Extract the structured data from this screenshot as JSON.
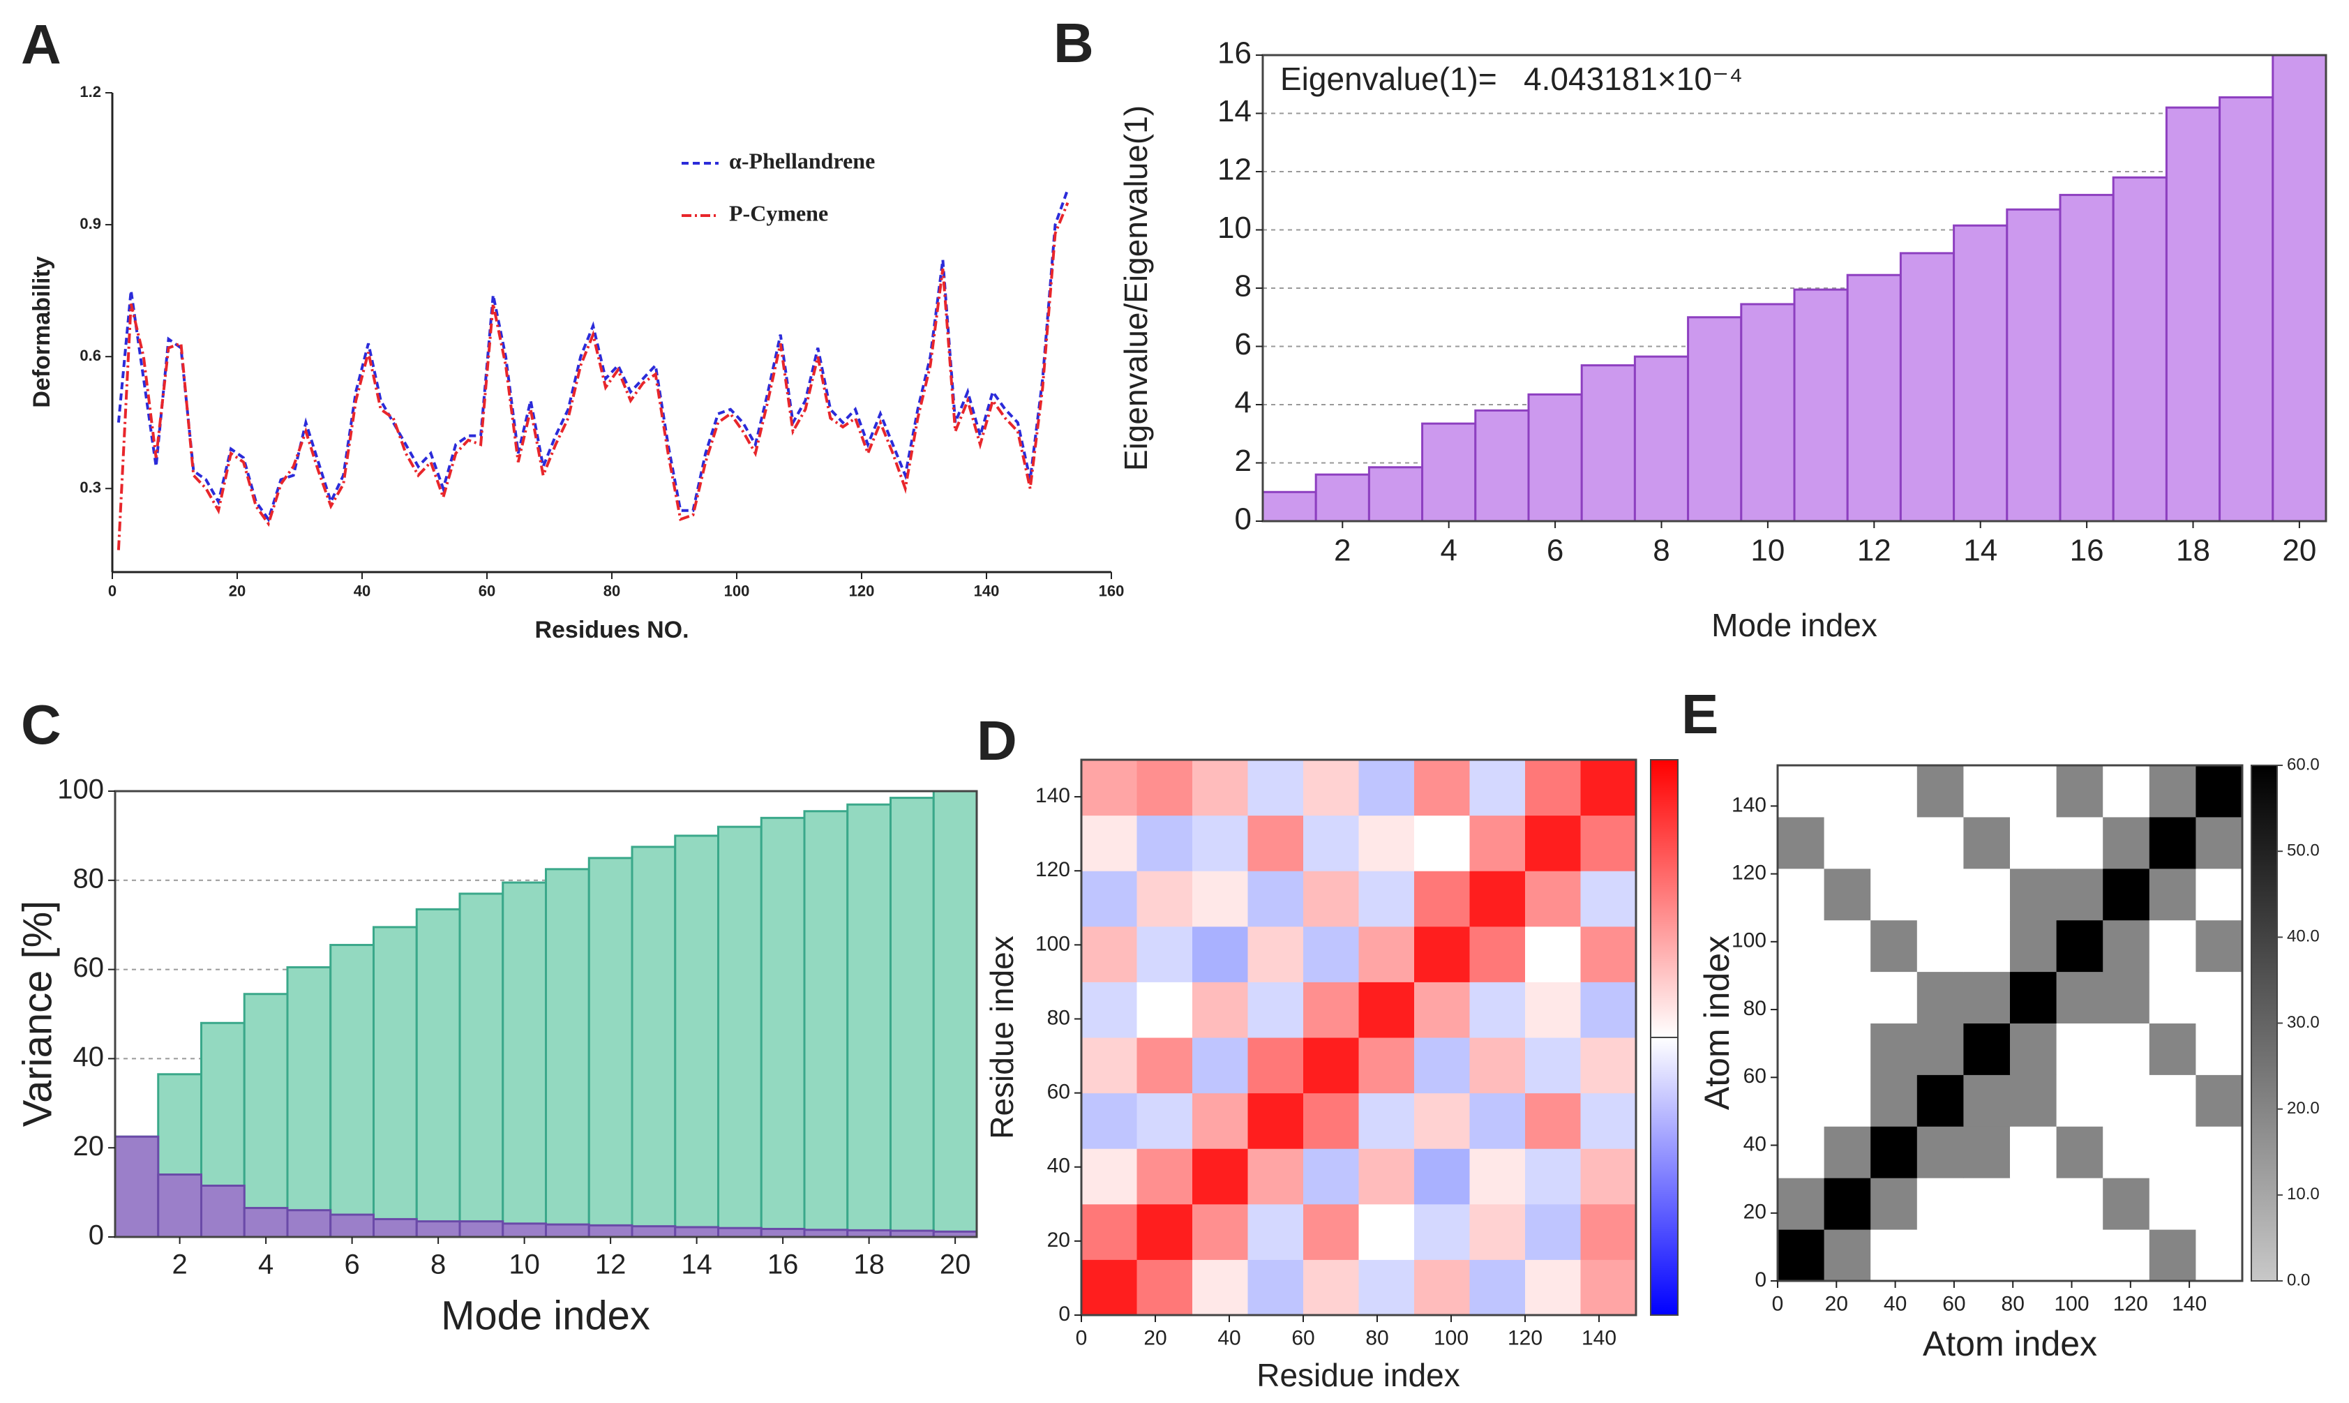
{
  "chart_data": [
    {
      "type": "line",
      "label": "A",
      "xlabel": "Residues NO.",
      "ylabel": "Deformability",
      "x": [
        1,
        3,
        5,
        7,
        9,
        11,
        13,
        15,
        17,
        19,
        21,
        23,
        25,
        27,
        29,
        31,
        33,
        35,
        37,
        39,
        41,
        43,
        45,
        47,
        49,
        51,
        53,
        55,
        57,
        59,
        61,
        63,
        65,
        67,
        69,
        71,
        73,
        75,
        77,
        79,
        81,
        83,
        85,
        87,
        89,
        91,
        93,
        95,
        97,
        99,
        101,
        103,
        105,
        107,
        109,
        111,
        113,
        115,
        117,
        119,
        121,
        123,
        125,
        127,
        129,
        131,
        133,
        135,
        137,
        139,
        141,
        143,
        145,
        147,
        149,
        151,
        153
      ],
      "series": [
        {
          "name": "α-Phellandrene",
          "color": "#2b2bd9",
          "dash": "10 6",
          "values": [
            0.45,
            0.75,
            0.55,
            0.35,
            0.64,
            0.62,
            0.34,
            0.32,
            0.27,
            0.39,
            0.37,
            0.27,
            0.23,
            0.32,
            0.33,
            0.45,
            0.36,
            0.27,
            0.33,
            0.52,
            0.63,
            0.5,
            0.45,
            0.4,
            0.35,
            0.38,
            0.3,
            0.4,
            0.42,
            0.42,
            0.74,
            0.6,
            0.38,
            0.5,
            0.35,
            0.42,
            0.48,
            0.6,
            0.67,
            0.55,
            0.58,
            0.52,
            0.55,
            0.58,
            0.4,
            0.25,
            0.25,
            0.38,
            0.47,
            0.48,
            0.45,
            0.4,
            0.52,
            0.65,
            0.45,
            0.5,
            0.62,
            0.48,
            0.45,
            0.48,
            0.4,
            0.47,
            0.4,
            0.33,
            0.48,
            0.6,
            0.82,
            0.45,
            0.52,
            0.42,
            0.52,
            0.48,
            0.45,
            0.32,
            0.55,
            0.9,
            0.98
          ]
        },
        {
          "name": "P-Cymene",
          "color": "#e8262b",
          "dash": "14 5 3 5",
          "values": [
            0.16,
            0.72,
            0.6,
            0.37,
            0.62,
            0.63,
            0.33,
            0.3,
            0.25,
            0.38,
            0.36,
            0.26,
            0.22,
            0.31,
            0.35,
            0.43,
            0.34,
            0.26,
            0.31,
            0.5,
            0.61,
            0.48,
            0.46,
            0.38,
            0.33,
            0.36,
            0.28,
            0.38,
            0.41,
            0.4,
            0.72,
            0.58,
            0.36,
            0.48,
            0.33,
            0.4,
            0.46,
            0.58,
            0.65,
            0.53,
            0.57,
            0.5,
            0.54,
            0.56,
            0.38,
            0.23,
            0.24,
            0.36,
            0.45,
            0.47,
            0.43,
            0.38,
            0.5,
            0.63,
            0.43,
            0.48,
            0.6,
            0.46,
            0.44,
            0.46,
            0.38,
            0.45,
            0.38,
            0.3,
            0.46,
            0.58,
            0.8,
            0.43,
            0.5,
            0.4,
            0.5,
            0.46,
            0.43,
            0.3,
            0.53,
            0.88,
            0.95
          ]
        }
      ],
      "xlim": [
        0,
        160
      ],
      "xticks": [
        0,
        20,
        40,
        60,
        80,
        100,
        120,
        140,
        160
      ],
      "ylim": [
        0.11,
        1.2
      ],
      "yticks": [
        0.3,
        0.6,
        0.9,
        1.2
      ],
      "grid": false,
      "legend": "top"
    },
    {
      "type": "bar",
      "label": "B",
      "xlabel": "Mode index",
      "ylabel": "Eigenvalue/Eigenvalue(1)",
      "annotation": "Eigenvalue(1)=   4.043181×10⁻⁴",
      "x": [
        1,
        2,
        3,
        4,
        5,
        6,
        7,
        8,
        9,
        10,
        11,
        12,
        13,
        14,
        15,
        16,
        17,
        18,
        19,
        20
      ],
      "series": [
        {
          "color": "#cc99ee",
          "edge": "#8d3fc0",
          "values": [
            1.0,
            1.6,
            1.85,
            3.35,
            3.8,
            4.35,
            5.35,
            5.65,
            7.0,
            7.45,
            7.95,
            8.45,
            9.2,
            10.15,
            10.7,
            11.2,
            11.8,
            14.2,
            14.55,
            16.0
          ]
        }
      ],
      "xlim": [
        0.5,
        20.5
      ],
      "xticks": [
        2,
        4,
        6,
        8,
        10,
        12,
        14,
        16,
        18,
        20
      ],
      "ylim": [
        0,
        16
      ],
      "yticks": [
        0,
        2,
        4,
        6,
        8,
        10,
        12,
        14,
        16
      ],
      "grid": true
    },
    {
      "type": "bar",
      "label": "C",
      "xlabel": "Mode index",
      "ylabel": "Variance [%]",
      "x": [
        1,
        2,
        3,
        4,
        5,
        6,
        7,
        8,
        9,
        10,
        11,
        12,
        13,
        14,
        15,
        16,
        17,
        18,
        19,
        20
      ],
      "series": [
        {
          "color": "#93d9c0",
          "edge": "#3aa88a",
          "values": [
            22.5,
            36.5,
            48,
            54.5,
            60.5,
            65.5,
            69.5,
            73.5,
            77,
            79.5,
            82.5,
            85,
            87.5,
            90,
            92,
            94,
            95.5,
            97,
            98.5,
            100
          ]
        },
        {
          "color": "#9b7fc9",
          "edge": "#6a4aa8",
          "values": [
            22.5,
            14,
            11.5,
            6.5,
            6,
            5,
            4,
            3.5,
            3.5,
            3,
            2.8,
            2.6,
            2.4,
            2.2,
            2,
            1.8,
            1.6,
            1.5,
            1.4,
            1.2
          ]
        }
      ],
      "xlim": [
        0.5,
        20.5
      ],
      "xticks": [
        2,
        4,
        6,
        8,
        10,
        12,
        14,
        16,
        18,
        20
      ],
      "ylim": [
        0,
        100
      ],
      "yticks": [
        0,
        20,
        40,
        60,
        80,
        100
      ],
      "grid": true
    },
    {
      "type": "heatmap",
      "label": "D",
      "xlabel": "Residue index",
      "ylabel": "Residue index",
      "colormap": "bwr",
      "clim": [
        -1,
        1
      ],
      "z": [
        [
          1.0,
          0.6,
          0.1,
          -0.3,
          0.2,
          -0.2,
          0.3,
          -0.3,
          0.1,
          0.4
        ],
        [
          0.6,
          1.0,
          0.5,
          -0.2,
          0.5,
          0.0,
          -0.2,
          0.2,
          -0.3,
          0.5
        ],
        [
          0.1,
          0.5,
          1.0,
          0.4,
          -0.3,
          0.3,
          -0.4,
          0.1,
          -0.2,
          0.3
        ],
        [
          -0.3,
          -0.2,
          0.4,
          1.0,
          0.6,
          -0.2,
          0.2,
          -0.3,
          0.5,
          -0.2
        ],
        [
          0.2,
          0.5,
          -0.3,
          0.6,
          1.0,
          0.5,
          -0.3,
          0.3,
          -0.2,
          0.2
        ],
        [
          -0.2,
          0.0,
          0.3,
          -0.2,
          0.5,
          1.0,
          0.4,
          -0.2,
          0.1,
          -0.3
        ],
        [
          0.3,
          -0.2,
          -0.4,
          0.2,
          -0.3,
          0.4,
          1.0,
          0.6,
          0.0,
          0.5
        ],
        [
          -0.3,
          0.2,
          0.1,
          -0.3,
          0.3,
          -0.2,
          0.6,
          1.0,
          0.5,
          -0.2
        ],
        [
          0.1,
          -0.3,
          -0.2,
          0.5,
          -0.2,
          0.1,
          0.0,
          0.5,
          1.0,
          0.6
        ],
        [
          0.4,
          0.5,
          0.3,
          -0.2,
          0.2,
          -0.3,
          0.5,
          -0.2,
          0.6,
          1.0
        ]
      ],
      "xlim": [
        0,
        150
      ],
      "xticks": [
        0,
        20,
        40,
        60,
        80,
        100,
        120,
        140
      ],
      "ylim": [
        0,
        150
      ],
      "yticks": [
        0,
        20,
        40,
        60,
        80,
        100,
        120,
        140
      ]
    },
    {
      "type": "heatmap",
      "label": "E",
      "xlabel": "Atom index",
      "ylabel": "Atom index",
      "colormap": "gray",
      "clim": [
        0,
        60
      ],
      "z": [
        [
          60,
          20,
          0,
          0,
          0,
          0,
          0,
          0,
          20,
          0
        ],
        [
          20,
          60,
          20,
          0,
          0,
          0,
          0,
          20,
          0,
          0
        ],
        [
          0,
          20,
          60,
          20,
          20,
          0,
          20,
          0,
          0,
          0
        ],
        [
          0,
          0,
          20,
          60,
          20,
          20,
          0,
          0,
          0,
          20
        ],
        [
          0,
          0,
          20,
          20,
          60,
          20,
          0,
          0,
          20,
          0
        ],
        [
          0,
          0,
          0,
          20,
          20,
          60,
          20,
          20,
          0,
          0
        ],
        [
          0,
          0,
          20,
          0,
          0,
          20,
          60,
          20,
          0,
          20
        ],
        [
          0,
          20,
          0,
          0,
          0,
          20,
          20,
          60,
          20,
          0
        ],
        [
          20,
          0,
          0,
          0,
          20,
          0,
          0,
          20,
          60,
          20
        ],
        [
          0,
          0,
          0,
          20,
          0,
          0,
          20,
          0,
          20,
          60
        ]
      ],
      "xlim": [
        0,
        158
      ],
      "xticks": [
        0,
        20,
        40,
        60,
        80,
        100,
        120,
        140
      ],
      "ylim": [
        0,
        152
      ],
      "yticks": [
        0,
        20,
        40,
        60,
        80,
        100,
        120,
        140
      ],
      "cticks": [
        {
          "value": 0,
          "label": "0.0"
        },
        {
          "value": 10,
          "label": "10.0"
        },
        {
          "value": 20,
          "label": "20.0"
        },
        {
          "value": 30,
          "label": "30.0"
        },
        {
          "value": 40,
          "label": "40.0"
        },
        {
          "value": 50,
          "label": "50.0"
        },
        {
          "value": 60,
          "label": "60.0"
        }
      ]
    }
  ]
}
